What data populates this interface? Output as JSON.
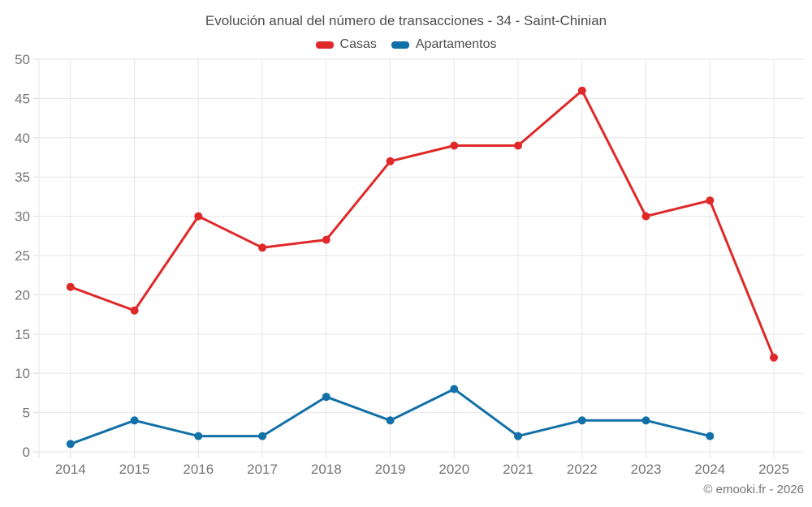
{
  "header": {
    "title": "Evolución anual del número de transacciones - 34 - Saint-Chinian"
  },
  "legend": [
    {
      "label": "Casas",
      "color": "#e02828"
    },
    {
      "label": "Apartamentos",
      "color": "#1270a8"
    }
  ],
  "footer": {
    "credit": "© emooki.fr - 2026"
  },
  "colors": {
    "casas": "#e02828",
    "apartamentos": "#1270a8",
    "grid": "#e6e6e6",
    "tick": "#dcdcdc",
    "axis_text": "#757575",
    "title_text": "#4d4d4d"
  },
  "chart_data": {
    "type": "line",
    "title": "Evolución anual del número de transacciones - 34 - Saint-Chinian",
    "x": [
      2014,
      2015,
      2016,
      2017,
      2018,
      2019,
      2020,
      2021,
      2022,
      2023,
      2024,
      2025
    ],
    "series": [
      {
        "name": "Casas",
        "color": "#e02828",
        "values": [
          21,
          18,
          30,
          26,
          27,
          37,
          39,
          39,
          46,
          30,
          32,
          12
        ]
      },
      {
        "name": "Apartamentos",
        "color": "#1270a8",
        "values": [
          1,
          4,
          2,
          2,
          7,
          4,
          8,
          2,
          4,
          4,
          2,
          null
        ]
      }
    ],
    "xlabel": "",
    "ylabel": "",
    "ylim": [
      0,
      50
    ],
    "ytick_step": 5,
    "grid": true,
    "legend_position": "top"
  }
}
